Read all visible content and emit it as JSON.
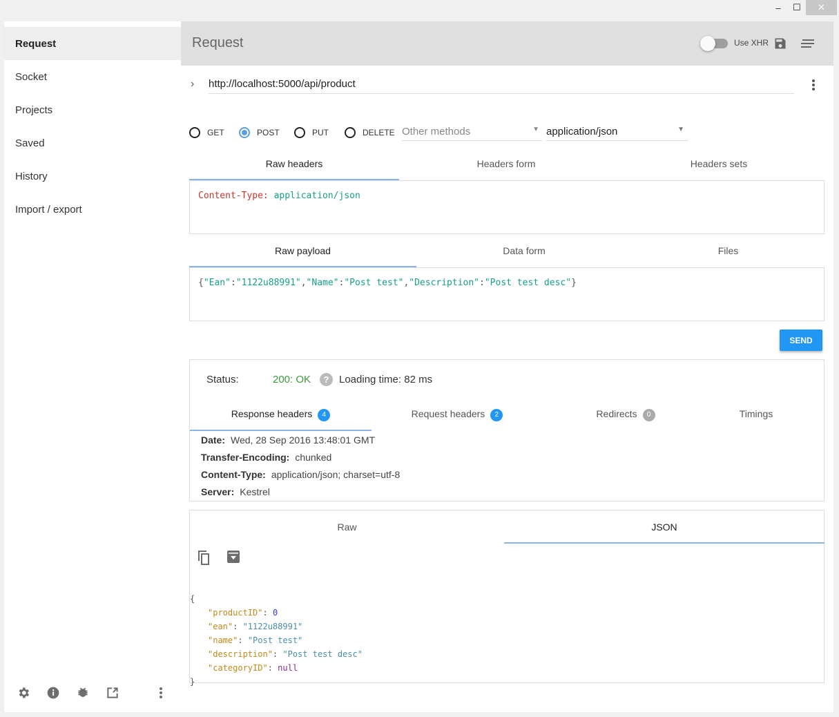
{
  "window": {
    "minimize": "–",
    "maximize": "☐",
    "close": "✕"
  },
  "sidebar": {
    "items": [
      {
        "label": "Request"
      },
      {
        "label": "Socket"
      },
      {
        "label": "Projects"
      },
      {
        "label": "Saved"
      },
      {
        "label": "History"
      },
      {
        "label": "Import / export"
      }
    ]
  },
  "header": {
    "title": "Request",
    "xhr_label": "Use XHR",
    "xhr_enabled": false
  },
  "url": {
    "value": "http://localhost:5000/api/product"
  },
  "methods": {
    "options": [
      "GET",
      "POST",
      "PUT",
      "DELETE"
    ],
    "selected": "POST",
    "other_placeholder": "Other methods",
    "content_type": "application/json"
  },
  "header_tabs": [
    "Raw headers",
    "Headers form",
    "Headers sets"
  ],
  "raw_headers": {
    "name": "Content-Type:",
    "value": "application/json"
  },
  "payload_tabs": [
    "Raw payload",
    "Data form",
    "Files"
  ],
  "payload": {
    "p1": "{",
    "k1": "\"Ean\"",
    "c": ":",
    "v1": "\"1122u88991\"",
    "k2": "\"Name\"",
    "v2": "\"Post test\"",
    "k3": "\"Description\"",
    "v3": "\"Post test desc\"",
    "p2": "}",
    "comma": ","
  },
  "send_label": "SEND",
  "response": {
    "status_label": "Status:",
    "status": "200: OK",
    "loading": "Loading time: 82 ms",
    "tabs": [
      {
        "label": "Response headers",
        "count": "4"
      },
      {
        "label": "Request headers",
        "count": "2"
      },
      {
        "label": "Redirects",
        "count": "0"
      },
      {
        "label": "Timings"
      }
    ],
    "headers": [
      {
        "name": "Date:",
        "value": "Wed, 28 Sep 2016 13:48:01 GMT"
      },
      {
        "name": "Transfer-Encoding:",
        "value": "chunked"
      },
      {
        "name": "Content-Type:",
        "value": "application/json; charset=utf-8"
      },
      {
        "name": "Server:",
        "value": "Kestrel"
      }
    ],
    "body_tabs": [
      "Raw",
      "JSON"
    ],
    "json": {
      "open": "{",
      "close": "}",
      "fields": [
        {
          "key": "\"productID\"",
          "value": "0",
          "type": "n"
        },
        {
          "key": "\"ean\"",
          "value": "\"1122u88991\"",
          "type": "s"
        },
        {
          "key": "\"name\"",
          "value": "\"Post test\"",
          "type": "s"
        },
        {
          "key": "\"description\"",
          "value": "\"Post test desc\"",
          "type": "s"
        },
        {
          "key": "\"categoryID\"",
          "value": "null",
          "type": "nl"
        }
      ]
    }
  },
  "colors": {
    "accent": "#2196f3",
    "status_ok": "#3c9a3c",
    "key": "#c08a1a",
    "string": "#4a8fa8"
  }
}
